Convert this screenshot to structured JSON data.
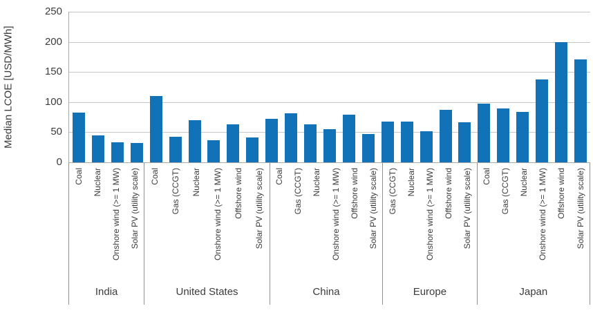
{
  "chart_data": {
    "type": "bar",
    "title": "",
    "xlabel": "",
    "ylabel": "Median LCOE [USD/MWh]",
    "ylim": [
      0,
      250
    ],
    "yticks": [
      0,
      50,
      100,
      150,
      200,
      250
    ],
    "grid": true,
    "legend": "none",
    "bar_color": "#1272b8",
    "colors": {
      "bar": "#1272b8",
      "gridline": "#c6c6c6",
      "axis": "#a8a8a8",
      "divider": "#8f8f8f",
      "text": "#3b3b3b"
    },
    "groups": [
      {
        "region": "India",
        "bars": [
          {
            "label": "Coal",
            "value": 83
          },
          {
            "label": "Nuclear",
            "value": 45
          },
          {
            "label": "Onshore wind (>= 1 MW)",
            "value": 33
          },
          {
            "label": "Solar PV (utility scale)",
            "value": 32
          }
        ]
      },
      {
        "region": "United States",
        "bars": [
          {
            "label": "Coal",
            "value": 110
          },
          {
            "label": "Gas (CCGT)",
            "value": 42
          },
          {
            "label": "Nuclear",
            "value": 70
          },
          {
            "label": "Onshore wind (>= 1 MW)",
            "value": 37
          },
          {
            "label": "Offshore wind",
            "value": 63
          },
          {
            "label": "Solar PV (utility scale)",
            "value": 41
          }
        ]
      },
      {
        "region": "China",
        "bars": [
          {
            "label": "Coal",
            "value": 72
          },
          {
            "label": "Gas (CCGT)",
            "value": 82
          },
          {
            "label": "Nuclear",
            "value": 63
          },
          {
            "label": "Onshore wind (>= 1 MW)",
            "value": 55
          },
          {
            "label": "Offshore wind",
            "value": 79
          },
          {
            "label": "Solar PV (utility scale)",
            "value": 47
          }
        ]
      },
      {
        "region": "Europe",
        "bars": [
          {
            "label": "Gas (CCGT)",
            "value": 68
          },
          {
            "label": "Nuclear",
            "value": 68
          },
          {
            "label": "Onshore wind (>= 1 MW)",
            "value": 52
          },
          {
            "label": "Offshore wind",
            "value": 87
          },
          {
            "label": "Solar PV (utility scale)",
            "value": 67
          }
        ]
      },
      {
        "region": "Japan",
        "bars": [
          {
            "label": "Coal",
            "value": 97
          },
          {
            "label": "Gas (CCGT)",
            "value": 90
          },
          {
            "label": "Nuclear",
            "value": 84
          },
          {
            "label": "Onshore wind (>= 1 MW)",
            "value": 138
          },
          {
            "label": "Offshore wind",
            "value": 199
          },
          {
            "label": "Solar PV (utility scale)",
            "value": 171
          }
        ]
      }
    ]
  }
}
